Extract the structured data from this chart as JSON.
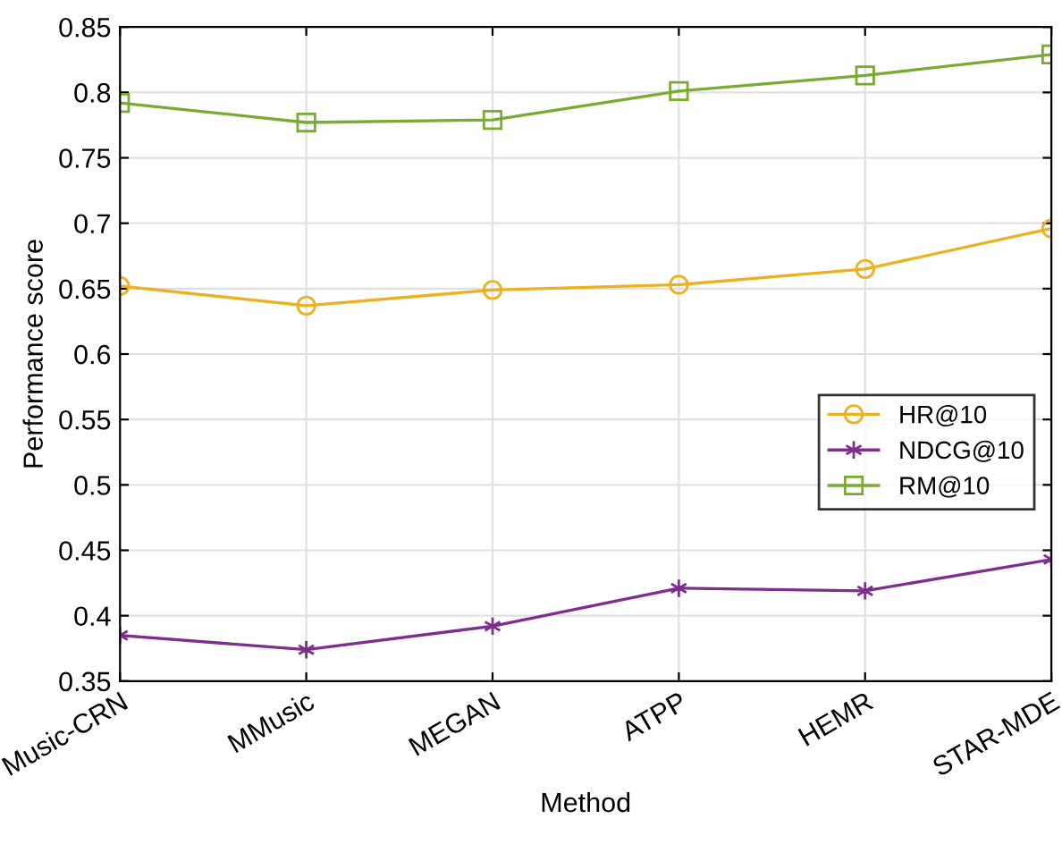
{
  "chart_data": {
    "type": "line",
    "xlabel": "Method",
    "ylabel": "Performance score",
    "categories": [
      "Music-CRN",
      "MMusic",
      "MEGAN",
      "ATPP",
      "HEMR",
      "STAR-MDE"
    ],
    "series": [
      {
        "name": "HR@10",
        "color": "#edb120",
        "marker": "circle",
        "values": [
          0.652,
          0.637,
          0.649,
          0.653,
          0.665,
          0.696
        ]
      },
      {
        "name": "NDCG@10",
        "color": "#7e2f8e",
        "marker": "cross",
        "values": [
          0.385,
          0.374,
          0.392,
          0.421,
          0.419,
          0.443
        ]
      },
      {
        "name": "RM@10",
        "color": "#77ac30",
        "marker": "square",
        "values": [
          0.792,
          0.777,
          0.779,
          0.801,
          0.813,
          0.829
        ]
      }
    ],
    "ylim": [
      0.35,
      0.85
    ],
    "yticks": [
      0.35,
      0.4,
      0.45,
      0.5,
      0.55,
      0.6,
      0.65,
      0.7,
      0.75,
      0.8,
      0.85
    ],
    "grid": true,
    "legend": "right",
    "line_style": "solid"
  }
}
